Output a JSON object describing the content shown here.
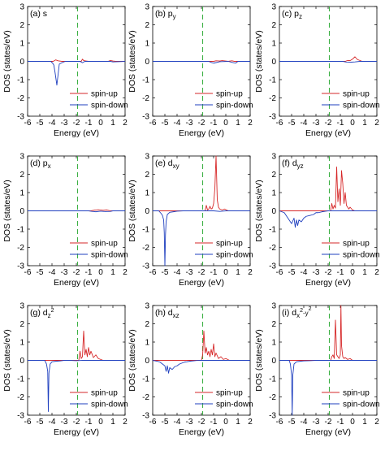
{
  "chart_data": [
    {
      "type": "line",
      "panel": "(a)",
      "orbital": "s",
      "orbital_sub": "",
      "orbital_sup": "",
      "xlabel": "Energy (eV)",
      "ylabel": "DOS (states/eV)",
      "xlim": [
        -6,
        2
      ],
      "ylim": [
        -3,
        3
      ],
      "xticks": [
        -6,
        -5,
        -4,
        -3,
        -2,
        -1,
        0,
        1,
        2
      ],
      "yticks": [
        -3,
        -2,
        -1,
        0,
        1,
        2,
        3
      ],
      "fermi_level": -1.9,
      "legend_position": "bottom-right",
      "series": [
        {
          "name": "spin-up",
          "color": "#d62728",
          "x": [
            -6,
            -3.9,
            -3.7,
            -3.5,
            -3.2,
            -1.6,
            -1.5,
            -1.4,
            -1.2,
            -1.0,
            0.6,
            0.8,
            1.0,
            1.2,
            2
          ],
          "y": [
            0,
            0,
            0.08,
            0.03,
            0,
            0,
            0.12,
            0.04,
            0.02,
            0,
            0,
            0.05,
            0.02,
            0,
            0
          ]
        },
        {
          "name": "spin-down",
          "color": "#1f3fbf",
          "x": [
            -6,
            -4.1,
            -3.95,
            -3.85,
            -3.75,
            -3.6,
            -3.4,
            -3.1,
            -2.9,
            -1.7,
            -1.5,
            -1.3,
            0.8,
            1.0,
            2
          ],
          "y": [
            0,
            0,
            -0.1,
            -0.2,
            -0.6,
            -1.3,
            -0.15,
            -0.05,
            0,
            0,
            -0.08,
            0,
            0,
            -0.03,
            0
          ]
        }
      ]
    },
    {
      "type": "line",
      "panel": "(b)",
      "orbital": "p",
      "orbital_sub": "y",
      "orbital_sup": "",
      "xlabel": "Energy (eV)",
      "ylabel": "DOS (states/eV)",
      "xlim": [
        -6,
        2
      ],
      "ylim": [
        -3,
        3
      ],
      "xticks": [
        -6,
        -5,
        -4,
        -3,
        -2,
        -1,
        0,
        1,
        2
      ],
      "yticks": [
        -3,
        -2,
        -1,
        0,
        1,
        2,
        3
      ],
      "fermi_level": -1.9,
      "legend_position": "bottom-right",
      "series": [
        {
          "name": "spin-up",
          "color": "#d62728",
          "x": [
            -6,
            -1.0,
            -0.8,
            -0.5,
            -0.3,
            0.2,
            0.5,
            0.7,
            2
          ],
          "y": [
            0,
            0,
            0.03,
            0.02,
            0.04,
            0,
            0.03,
            0,
            0
          ]
        },
        {
          "name": "spin-down",
          "color": "#1f3fbf",
          "x": [
            -6,
            -1.4,
            -1.2,
            -1.0,
            -0.5,
            0.2,
            0.5,
            0.8,
            1.0,
            2
          ],
          "y": [
            0,
            0,
            -0.06,
            -0.1,
            -0.02,
            0,
            -0.05,
            -0.1,
            0,
            0
          ]
        }
      ]
    },
    {
      "type": "line",
      "panel": "(c)",
      "orbital": "p",
      "orbital_sub": "z",
      "orbital_sup": "",
      "xlabel": "Energy (eV)",
      "ylabel": "DOS (states/eV)",
      "xlim": [
        -6,
        2
      ],
      "ylim": [
        -3,
        3
      ],
      "xticks": [
        -6,
        -5,
        -4,
        -3,
        -2,
        -1,
        0,
        1,
        2
      ],
      "yticks": [
        -3,
        -2,
        -1,
        0,
        1,
        2,
        3
      ],
      "fermi_level": -1.9,
      "legend_position": "bottom-right",
      "series": [
        {
          "name": "spin-up",
          "color": "#d62728",
          "x": [
            -6,
            -0.6,
            -0.4,
            -0.2,
            0.0,
            0.2,
            0.4,
            0.6,
            0.8,
            2
          ],
          "y": [
            0,
            0,
            0.05,
            0.04,
            0.12,
            0.25,
            0.1,
            0.05,
            0,
            0
          ]
        },
        {
          "name": "spin-down",
          "color": "#1f3fbf",
          "x": [
            -6,
            -0.8,
            -0.5,
            -0.2,
            0.2,
            0.6,
            2
          ],
          "y": [
            0,
            0,
            -0.04,
            -0.05,
            -0.03,
            0,
            0
          ]
        }
      ]
    },
    {
      "type": "line",
      "panel": "(d)",
      "orbital": "p",
      "orbital_sub": "x",
      "orbital_sup": "",
      "xlabel": "Energy (eV)",
      "ylabel": "DOS (states/eV)",
      "xlim": [
        -6,
        2
      ],
      "ylim": [
        -3,
        3
      ],
      "xticks": [
        -6,
        -5,
        -4,
        -3,
        -2,
        -1,
        0,
        1,
        2
      ],
      "yticks": [
        -3,
        -2,
        -1,
        0,
        1,
        2,
        3
      ],
      "fermi_level": -1.9,
      "legend_position": "bottom-right",
      "series": [
        {
          "name": "spin-up",
          "color": "#d62728",
          "x": [
            -6,
            -0.8,
            -0.5,
            -0.2,
            0.2,
            0.5,
            0.8,
            2
          ],
          "y": [
            0,
            0,
            0.04,
            0.06,
            0.03,
            0.05,
            0,
            0
          ]
        },
        {
          "name": "spin-down",
          "color": "#1f3fbf",
          "x": [
            -6,
            -1.0,
            -0.7,
            -0.4,
            0.0,
            0.4,
            0.8,
            1.0,
            2
          ],
          "y": [
            0,
            0,
            -0.03,
            -0.05,
            -0.02,
            -0.04,
            -0.03,
            0,
            0
          ]
        }
      ]
    },
    {
      "type": "line",
      "panel": "(e)",
      "orbital": "d",
      "orbital_sub": "xy",
      "orbital_sup": "",
      "xlabel": "Energy (eV)",
      "ylabel": "DOS (states/eV)",
      "xlim": [
        -6,
        2
      ],
      "ylim": [
        -3,
        3
      ],
      "xticks": [
        -6,
        -5,
        -4,
        -3,
        -2,
        -1,
        0,
        1,
        2
      ],
      "yticks": [
        -3,
        -2,
        -1,
        0,
        1,
        2,
        3
      ],
      "fermi_level": -1.9,
      "legend_position": "bottom-right",
      "series": [
        {
          "name": "spin-up",
          "color": "#d62728",
          "x": [
            -6,
            -1.7,
            -1.6,
            -1.5,
            -1.4,
            -1.3,
            -1.2,
            -1.1,
            -1.0,
            -0.9,
            -0.8,
            -0.7,
            -0.6,
            -0.5,
            -0.3,
            -0.1,
            0.2,
            2
          ],
          "y": [
            0,
            0,
            0.3,
            0.05,
            0.1,
            0.25,
            0.1,
            0.15,
            0.4,
            1.2,
            3.0,
            0.6,
            0.2,
            0.1,
            0.05,
            0.1,
            0,
            0
          ]
        },
        {
          "name": "spin-down",
          "color": "#1f3fbf",
          "x": [
            -6,
            -5.5,
            -5.3,
            -5.2,
            -5.1,
            -5.05,
            -5.0,
            -4.95,
            -4.9,
            -4.8,
            -4.6,
            -4.3,
            -4.0,
            -3.5,
            -2.5,
            -1.0,
            -0.5,
            0.0,
            2
          ],
          "y": [
            0,
            0,
            -0.15,
            -0.25,
            -0.5,
            -1.2,
            -3.0,
            -1.3,
            -0.6,
            -0.2,
            -0.08,
            -0.05,
            -0.02,
            0,
            0,
            0,
            -0.03,
            0,
            0
          ]
        }
      ]
    },
    {
      "type": "line",
      "panel": "(f)",
      "orbital": "d",
      "orbital_sub": "yz",
      "orbital_sup": "",
      "xlabel": "Energy (eV)",
      "ylabel": "DOS (states/eV)",
      "xlim": [
        -6,
        2
      ],
      "ylim": [
        -3,
        3
      ],
      "xticks": [
        -6,
        -5,
        -4,
        -3,
        -2,
        -1,
        0,
        1,
        2
      ],
      "yticks": [
        -3,
        -2,
        -1,
        0,
        1,
        2,
        3
      ],
      "fermi_level": -1.9,
      "legend_position": "bottom-right",
      "series": [
        {
          "name": "spin-up",
          "color": "#d62728",
          "x": [
            -6,
            -1.8,
            -1.7,
            -1.6,
            -1.5,
            -1.4,
            -1.3,
            -1.2,
            -1.1,
            -1.0,
            -0.9,
            -0.8,
            -0.7,
            -0.6,
            -0.5,
            -0.4,
            -0.3,
            -0.2,
            0.0,
            0.2,
            2
          ],
          "y": [
            0,
            0,
            0.4,
            0.1,
            0.3,
            0.15,
            2.4,
            0.5,
            1.2,
            0.3,
            2.2,
            1.5,
            0.4,
            1.0,
            0.3,
            0.2,
            0.1,
            0.2,
            0.05,
            0,
            0
          ]
        },
        {
          "name": "spin-down",
          "color": "#1f3fbf",
          "x": [
            -6,
            -5.8,
            -5.6,
            -5.4,
            -5.2,
            -5.0,
            -4.8,
            -4.7,
            -4.6,
            -4.5,
            -4.4,
            -4.2,
            -4.0,
            -3.8,
            -3.5,
            -3.2,
            -3.0,
            -2.8,
            -2.5,
            -2.2,
            -2.0,
            2
          ],
          "y": [
            0,
            -0.05,
            -0.1,
            -0.3,
            -0.5,
            -0.7,
            -0.4,
            -0.9,
            -0.5,
            -0.8,
            -0.5,
            -0.6,
            -0.4,
            -0.3,
            -0.25,
            -0.2,
            -0.1,
            -0.1,
            -0.05,
            -0.02,
            0,
            0
          ]
        }
      ]
    },
    {
      "type": "line",
      "panel": "(g)",
      "orbital": "d",
      "orbital_sub": "z",
      "orbital_sup": "2",
      "xlabel": "Energy (eV)",
      "ylabel": "DOS (states/eV)",
      "xlim": [
        -6,
        2
      ],
      "ylim": [
        -3,
        3
      ],
      "xticks": [
        -6,
        -5,
        -4,
        -3,
        -2,
        -1,
        0,
        1,
        2
      ],
      "yticks": [
        -3,
        -2,
        -1,
        0,
        1,
        2,
        3
      ],
      "fermi_level": -1.9,
      "legend_position": "bottom-right",
      "series": [
        {
          "name": "spin-up",
          "color": "#d62728",
          "x": [
            -6,
            -1.8,
            -1.7,
            -1.6,
            -1.5,
            -1.4,
            -1.3,
            -1.2,
            -1.1,
            -1.0,
            -0.9,
            -0.8,
            -0.6,
            -0.4,
            -0.2,
            0.0,
            0.2,
            2
          ],
          "y": [
            0,
            0,
            0.5,
            0.1,
            0.2,
            1.6,
            0.3,
            0.6,
            0.2,
            0.7,
            0.3,
            0.5,
            0.15,
            0.3,
            0.1,
            0.05,
            0,
            0
          ]
        },
        {
          "name": "spin-down",
          "color": "#1f3fbf",
          "x": [
            -6,
            -4.6,
            -4.45,
            -4.35,
            -4.3,
            -4.25,
            -4.15,
            -4.0,
            -3.7,
            -3.3,
            -3.0,
            -2.5,
            -2.0,
            -1.5,
            2
          ],
          "y": [
            0,
            0,
            -0.2,
            -0.6,
            -2.8,
            -0.7,
            -0.2,
            -0.08,
            -0.05,
            -0.03,
            0,
            0,
            -0.02,
            0,
            0
          ]
        }
      ]
    },
    {
      "type": "line",
      "panel": "(h)",
      "orbital": "d",
      "orbital_sub": "xz",
      "orbital_sup": "",
      "xlabel": "Energy (eV)",
      "ylabel": "DOS (states/eV)",
      "xlim": [
        -6,
        2
      ],
      "ylim": [
        -3,
        3
      ],
      "xticks": [
        -6,
        -5,
        -4,
        -3,
        -2,
        -1,
        0,
        1,
        2
      ],
      "yticks": [
        -3,
        -2,
        -1,
        0,
        1,
        2,
        3
      ],
      "fermi_level": -1.9,
      "legend_position": "bottom-right",
      "series": [
        {
          "name": "spin-up",
          "color": "#d62728",
          "x": [
            -6,
            -2.0,
            -1.9,
            -1.8,
            -1.7,
            -1.6,
            -1.5,
            -1.4,
            -1.3,
            -1.2,
            -1.1,
            -1.0,
            -0.9,
            -0.8,
            -0.6,
            -0.4,
            -0.2,
            0.0,
            0.3,
            2
          ],
          "y": [
            0,
            0,
            0.3,
            1.6,
            0.4,
            0.7,
            0.3,
            0.5,
            0.2,
            0.6,
            0.3,
            0.9,
            0.2,
            0.4,
            0.1,
            0.2,
            0.05,
            0.1,
            0,
            0
          ]
        },
        {
          "name": "spin-down",
          "color": "#1f3fbf",
          "x": [
            -6,
            -5.6,
            -5.4,
            -5.2,
            -5.0,
            -4.9,
            -4.8,
            -4.7,
            -4.6,
            -4.4,
            -4.2,
            -4.0,
            -3.8,
            -3.6,
            -3.4,
            -3.2,
            -3.0,
            -2.7,
            -2.4,
            -2.0,
            2
          ],
          "y": [
            0,
            -0.05,
            -0.1,
            -0.2,
            -0.3,
            -0.6,
            -0.3,
            -0.7,
            -0.4,
            -0.5,
            -0.35,
            -0.3,
            -0.2,
            -0.15,
            -0.1,
            -0.08,
            -0.05,
            -0.03,
            -0.01,
            0,
            0
          ]
        }
      ]
    },
    {
      "type": "line",
      "panel": "(i)",
      "orbital": "d",
      "orbital_sub": "x",
      "orbital_sup": "2",
      "orbital_mid": "-y",
      "orbital_sub2": "",
      "orbital_sup2": "2",
      "xlabel": "Energy (eV)",
      "ylabel": "DOS (states/eV)",
      "xlim": [
        -6,
        2
      ],
      "ylim": [
        -3,
        3
      ],
      "xticks": [
        -6,
        -5,
        -4,
        -3,
        -2,
        -1,
        0,
        1,
        2
      ],
      "yticks": [
        -3,
        -2,
        -1,
        0,
        1,
        2,
        3
      ],
      "fermi_level": -1.9,
      "legend_position": "bottom-right",
      "series": [
        {
          "name": "spin-up",
          "color": "#d62728",
          "x": [
            -6,
            -1.8,
            -1.7,
            -1.6,
            -1.5,
            -1.4,
            -1.3,
            -1.2,
            -1.1,
            -1.0,
            -0.95,
            -0.9,
            -0.8,
            -0.7,
            -0.6,
            -0.4,
            -0.2,
            0.0,
            2
          ],
          "y": [
            0,
            0,
            0.2,
            0.3,
            0.1,
            2.2,
            0.3,
            0.2,
            0.1,
            0.3,
            3.0,
            0.8,
            0.2,
            0.1,
            0.15,
            0.05,
            0.1,
            0,
            0
          ]
        },
        {
          "name": "spin-down",
          "color": "#1f3fbf",
          "x": [
            -6,
            -5.2,
            -5.1,
            -5.0,
            -4.95,
            -4.9,
            -4.8,
            -4.6,
            -4.3,
            -4.0,
            -3.5,
            -3.0,
            -2.5,
            -2.0,
            2
          ],
          "y": [
            0,
            0,
            -0.2,
            -0.8,
            -3.0,
            -0.8,
            -0.2,
            -0.08,
            -0.05,
            -0.03,
            -0.02,
            0,
            0,
            0,
            0
          ]
        }
      ]
    }
  ]
}
